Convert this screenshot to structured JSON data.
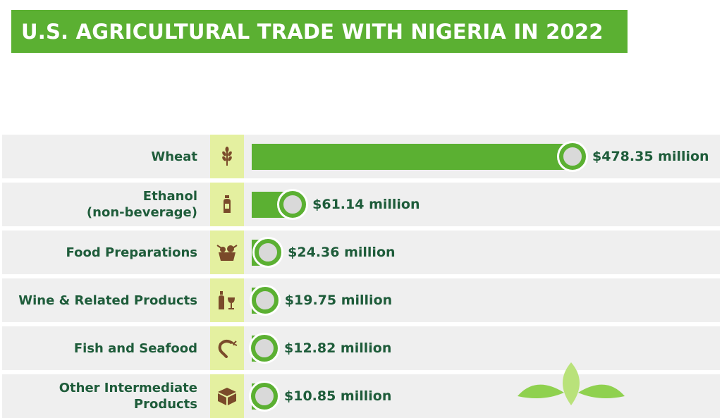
{
  "title": "U.S.  AGRICULTURAL TRADE WITH NIGERIA IN 2022",
  "colors": {
    "title_bg": "#5bb032",
    "bar": "#5bb032",
    "row_bg": "#efefef",
    "icon_bg": "#e4f0a0",
    "label_text": "#1e5c3a",
    "icon": "#7a4a2a"
  },
  "chart_data": {
    "type": "bar",
    "orientation": "horizontal",
    "title": "U.S.  AGRICULTURAL TRADE WITH NIGERIA IN 2022",
    "unit": "million USD",
    "categories": [
      [
        "Wheat"
      ],
      [
        "Ethanol",
        "(non-beverage)"
      ],
      [
        "Food Preparations"
      ],
      [
        "Wine & Related Products"
      ],
      [
        "Fish and Seafood"
      ],
      [
        "Other Intermediate",
        "Products"
      ]
    ],
    "values": [
      478.35,
      61.14,
      24.36,
      19.75,
      12.82,
      10.85
    ],
    "value_labels": [
      "$478.35 million",
      "$61.14 million",
      "$24.36 million",
      "$19.75 million",
      "$12.82 million",
      "$10.85 million"
    ],
    "icons": [
      "wheat-icon",
      "bottle-icon",
      "food-basket-icon",
      "wine-icon",
      "shrimp-icon",
      "box-icon"
    ]
  }
}
